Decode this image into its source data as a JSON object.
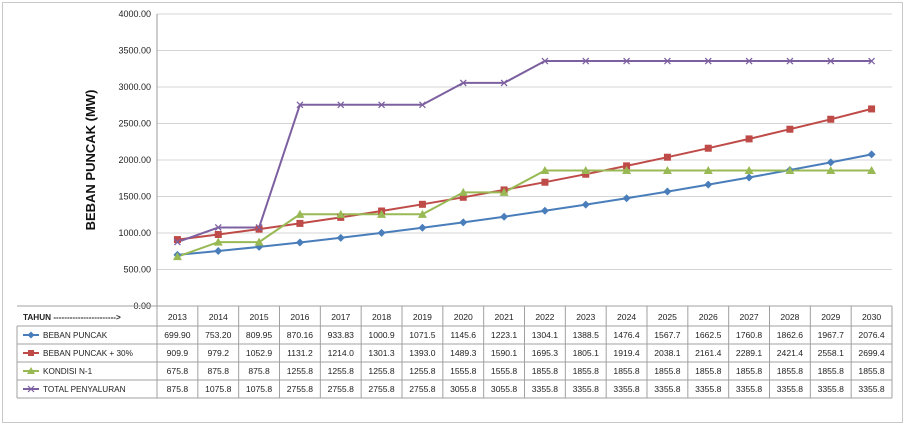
{
  "chart_data": {
    "type": "line",
    "ylabel": "BEBAN PUNCAK (MW)",
    "xlabel": "TAHUN ----------------------->",
    "ylim": [
      0,
      4000
    ],
    "y_ticks": [
      "0.00",
      "500.00",
      "1000.00",
      "1500.00",
      "2000.00",
      "2500.00",
      "3000.00",
      "3500.00",
      "4000.00"
    ],
    "categories": [
      "2013",
      "2014",
      "2015",
      "2016",
      "2017",
      "2018",
      "2019",
      "2020",
      "2021",
      "2022",
      "2023",
      "2024",
      "2025",
      "2026",
      "2027",
      "2028",
      "2029",
      "2030"
    ],
    "grid": true,
    "legend": "table-below",
    "series": [
      {
        "name": "BEBAN PUNCAK",
        "color": "#4a7ebb",
        "marker": "diamond",
        "values": [
          699.9,
          753.2,
          809.95,
          870.16,
          933.83,
          1000.9,
          1071.5,
          1145.6,
          1223.1,
          1304.1,
          1388.5,
          1476.4,
          1567.7,
          1662.5,
          1760.8,
          1862.6,
          1967.7,
          2076.4
        ],
        "labels": [
          "699.90",
          "753.20",
          "809.95",
          "870.16",
          "933.83",
          "1000.9",
          "1071.5",
          "1145.6",
          "1223.1",
          "1304.1",
          "1388.5",
          "1476.4",
          "1567.7",
          "1662.5",
          "1760.8",
          "1862.6",
          "1967.7",
          "2076.4"
        ]
      },
      {
        "name": "BEBAN PUNCAK + 30%",
        "color": "#be4b48",
        "marker": "square",
        "values": [
          909.9,
          979.2,
          1052.9,
          1131.2,
          1214.0,
          1301.3,
          1393.0,
          1489.3,
          1590.1,
          1695.3,
          1805.1,
          1919.4,
          2038.1,
          2161.4,
          2289.1,
          2421.4,
          2558.1,
          2699.4
        ],
        "labels": [
          "909.9",
          "979.2",
          "1052.9",
          "1131.2",
          "1214.0",
          "1301.3",
          "1393.0",
          "1489.3",
          "1590.1",
          "1695.3",
          "1805.1",
          "1919.4",
          "2038.1",
          "2161.4",
          "2289.1",
          "2421.4",
          "2558.1",
          "2699.4"
        ]
      },
      {
        "name": "KONDISI N-1",
        "color": "#98b954",
        "marker": "triangle",
        "values": [
          675.8,
          875.8,
          875.8,
          1255.8,
          1255.8,
          1255.8,
          1255.8,
          1555.8,
          1555.8,
          1855.8,
          1855.8,
          1855.8,
          1855.8,
          1855.8,
          1855.8,
          1855.8,
          1855.8,
          1855.8
        ],
        "labels": [
          "675.8",
          "875.8",
          "875.8",
          "1255.8",
          "1255.8",
          "1255.8",
          "1255.8",
          "1555.8",
          "1555.8",
          "1855.8",
          "1855.8",
          "1855.8",
          "1855.8",
          "1855.8",
          "1855.8",
          "1855.8",
          "1855.8",
          "1855.8"
        ]
      },
      {
        "name": "TOTAL PENYALURAN",
        "color": "#7d60a0",
        "marker": "x",
        "values": [
          875.8,
          1075.8,
          1075.8,
          2755.8,
          2755.8,
          2755.8,
          2755.8,
          3055.8,
          3055.8,
          3355.8,
          3355.8,
          3355.8,
          3355.8,
          3355.8,
          3355.8,
          3355.8,
          3355.8,
          3355.8
        ],
        "labels": [
          "875.8",
          "1075.8",
          "1075.8",
          "2755.8",
          "2755.8",
          "2755.8",
          "2755.8",
          "3055.8",
          "3055.8",
          "3355.8",
          "3355.8",
          "3355.8",
          "3355.8",
          "3355.8",
          "3355.8",
          "3355.8",
          "3355.8",
          "3355.8"
        ]
      }
    ]
  }
}
